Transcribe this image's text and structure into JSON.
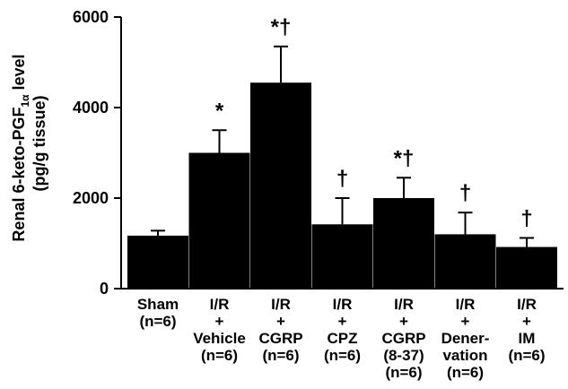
{
  "chart_data": {
    "type": "bar",
    "ylabel_lines": [
      "Renal 6-keto-PGF",
      "(pg/g tissue)"
    ],
    "ylabel_subscript": "1α",
    "ylabel_suffix": " level",
    "ylim": [
      0,
      6000
    ],
    "yticks": [
      0,
      2000,
      4000,
      6000
    ],
    "categories": [
      {
        "lines": [
          "Sham",
          "(n=6)"
        ]
      },
      {
        "lines": [
          "I/R",
          "+",
          "Vehicle",
          "(n=6)"
        ]
      },
      {
        "lines": [
          "I/R",
          "+",
          "CGRP",
          "(n=6)"
        ]
      },
      {
        "lines": [
          "I/R",
          "+",
          "CPZ",
          "(n=6)"
        ]
      },
      {
        "lines": [
          "I/R",
          "+",
          "CGRP",
          "(8-37)",
          "(n=6)"
        ]
      },
      {
        "lines": [
          "I/R",
          "+",
          "Dener-",
          "vation",
          "(n=6)"
        ]
      },
      {
        "lines": [
          "I/R",
          "+",
          "IM",
          "(n=6)"
        ]
      }
    ],
    "values": [
      1170,
      3000,
      4550,
      1420,
      2000,
      1200,
      920
    ],
    "errors": [
      110,
      500,
      800,
      580,
      450,
      480,
      200
    ],
    "significance": [
      "",
      "*",
      "*†",
      "†",
      "*†",
      "†",
      "†"
    ],
    "bar_color": "#000000",
    "grid": false,
    "legend": "none"
  }
}
